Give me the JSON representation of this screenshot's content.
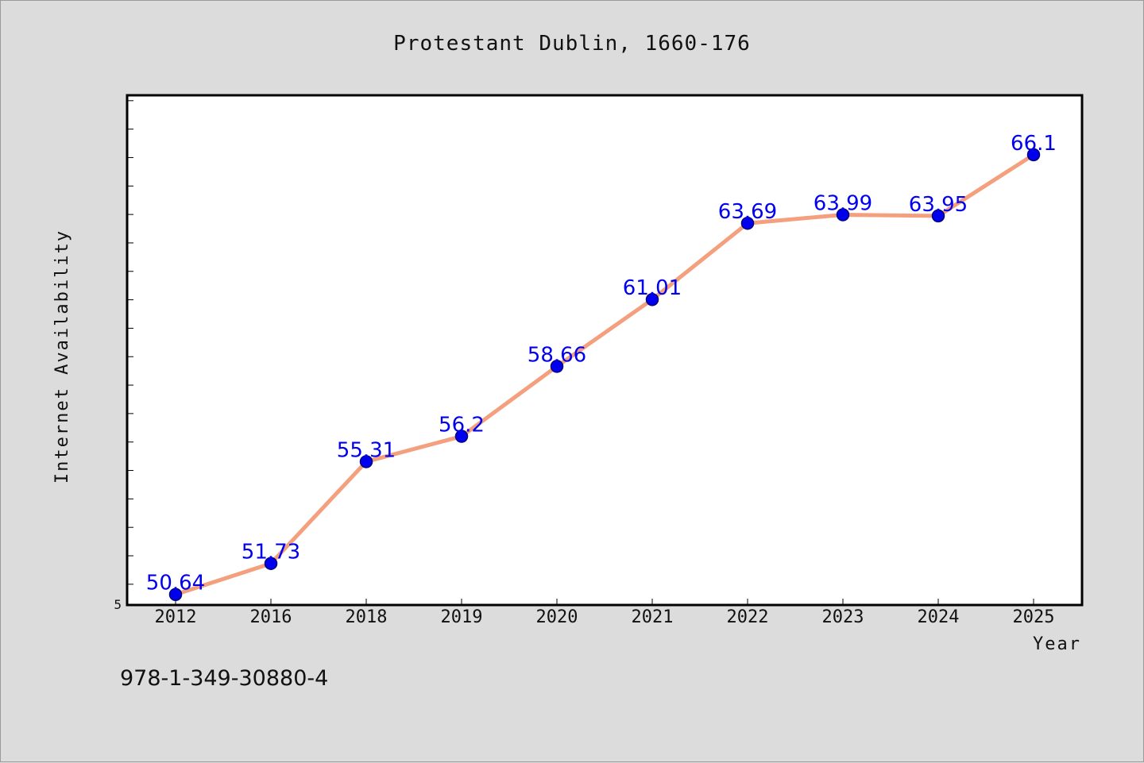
{
  "chart_data": {
    "type": "line",
    "title": "Protestant Dublin, 1660-176",
    "xlabel": "Year",
    "ylabel": "Internet Availability",
    "x": [
      "2012",
      "2016",
      "2018",
      "2019",
      "2020",
      "2021",
      "2022",
      "2023",
      "2024",
      "2025"
    ],
    "series": [
      {
        "values": [
          50.64,
          51.73,
          55.31,
          56.2,
          58.66,
          61.01,
          63.69,
          63.99,
          63.95,
          66.1
        ]
      }
    ],
    "y_min_tick_label": "5",
    "ylim": [
      50.27,
      68.19
    ],
    "y_minor_tick_step": 1,
    "grid": false,
    "legend": "none",
    "colors": {
      "line": "#f4a07e",
      "marker": "#0000ee",
      "marker_edge": "#000080",
      "data_label": "#0000ee",
      "plot_background": "#ffffff",
      "figure_background": "#dcdcdc"
    },
    "footer": "978-1-349-30880-4"
  }
}
